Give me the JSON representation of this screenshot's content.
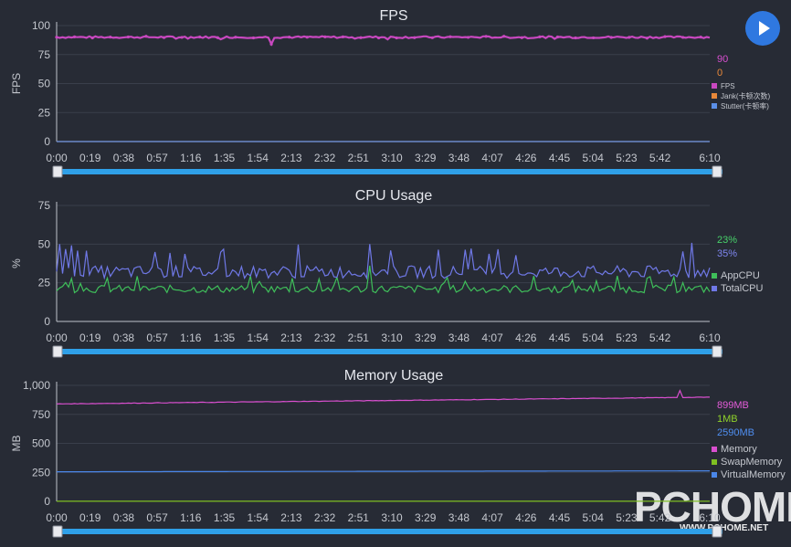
{
  "chart_data": [
    {
      "type": "line",
      "title": "FPS",
      "ylabel": "FPS",
      "ylim": [
        0,
        100
      ],
      "yticks": [
        "100",
        "75",
        "50",
        "25",
        "0"
      ],
      "x_tick_labels": [
        "0:00",
        "0:19",
        "0:38",
        "0:57",
        "1:16",
        "1:35",
        "1:54",
        "2:13",
        "2:32",
        "2:51",
        "3:10",
        "3:29",
        "3:48",
        "4:07",
        "4:26",
        "4:45",
        "5:04",
        "5:23",
        "5:42",
        "6:10"
      ],
      "current_values": [
        {
          "text": "90",
          "color": "#d84fd0"
        },
        {
          "text": "0",
          "color": "#e8883a"
        }
      ],
      "series": [
        {
          "name": "FPS",
          "color": "#c948c0",
          "baseline": 90
        },
        {
          "name": "Jank(卡顿次数)",
          "color": "#e8883a",
          "baseline": 0
        },
        {
          "name": "Stutter(卡顿率)",
          "color": "#5b8fe8",
          "baseline": 0
        }
      ]
    },
    {
      "type": "line",
      "title": "CPU Usage",
      "ylabel": "%",
      "ylim": [
        0,
        75
      ],
      "yticks": [
        "75",
        "50",
        "25",
        "0"
      ],
      "x_tick_labels": [
        "0:00",
        "0:19",
        "0:38",
        "0:57",
        "1:16",
        "1:35",
        "1:54",
        "2:13",
        "2:32",
        "2:51",
        "3:10",
        "3:29",
        "3:48",
        "4:07",
        "4:26",
        "4:45",
        "5:04",
        "5:23",
        "5:42",
        "6:10"
      ],
      "current_values": [
        {
          "text": "23%",
          "color": "#47d16a"
        },
        {
          "text": "35%",
          "color": "#7f86f0"
        }
      ],
      "series": [
        {
          "name": "AppCPU",
          "color": "#3fbf5a",
          "baseline": 21
        },
        {
          "name": "TotalCPU",
          "color": "#6f78e6",
          "baseline": 32
        }
      ]
    },
    {
      "type": "line",
      "title": "Memory Usage",
      "ylabel": "MB",
      "ylim": [
        0,
        1000
      ],
      "yticks": [
        "1,000",
        "750",
        "500",
        "250",
        "0"
      ],
      "x_tick_labels": [
        "0:00",
        "0:19",
        "0:38",
        "0:57",
        "1:16",
        "1:35",
        "1:54",
        "2:13",
        "2:32",
        "2:51",
        "3:10",
        "3:29",
        "3:48",
        "4:07",
        "4:26",
        "4:45",
        "5:04",
        "5:23",
        "5:42",
        "6:10"
      ],
      "current_values": [
        {
          "text": "899MB",
          "color": "#e35bd8"
        },
        {
          "text": "1MB",
          "color": "#8fd12a"
        },
        {
          "text": "2590MB",
          "color": "#4f8ef0"
        }
      ],
      "series": [
        {
          "name": "Memory",
          "color": "#d94fcf"
        },
        {
          "name": "SwapMemory",
          "color": "#7fbf22"
        },
        {
          "name": "VirtualMemory",
          "color": "#4a86e8"
        }
      ]
    }
  ],
  "watermark": {
    "text": "PCHOME",
    "url": "WWW.PCHOME.NET"
  },
  "icons": {
    "play": "play-icon"
  }
}
